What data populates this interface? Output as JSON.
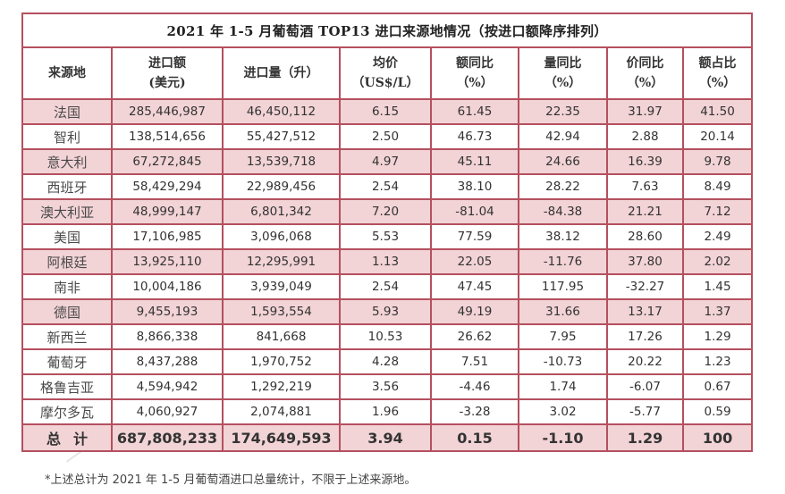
{
  "table": {
    "title": "2021 年 1-5 月葡萄酒 TOP13 进口来源地情况（按进口额降序排列）",
    "headers": [
      {
        "line1": "来源地",
        "line2": ""
      },
      {
        "line1": "进口额",
        "line2": "(美元)"
      },
      {
        "line1": "进口量（升）",
        "line2": ""
      },
      {
        "line1": "均价",
        "line2": "（US$/L）"
      },
      {
        "line1": "额同比",
        "line2": "（%）"
      },
      {
        "line1": "量同比",
        "line2": "（%）"
      },
      {
        "line1": "价同比",
        "line2": "（%）"
      },
      {
        "line1": "额占比",
        "line2": "（%）"
      }
    ],
    "rows": [
      {
        "country": "法国",
        "value_usd": "285,446,987",
        "volume_l": "46,450,112",
        "avg_price": "6.15",
        "value_yoy": "61.45",
        "volume_yoy": "22.35",
        "price_yoy": "31.97",
        "share": "41.50"
      },
      {
        "country": "智利",
        "value_usd": "138,514,656",
        "volume_l": "55,427,512",
        "avg_price": "2.50",
        "value_yoy": "46.73",
        "volume_yoy": "42.94",
        "price_yoy": "2.88",
        "share": "20.14"
      },
      {
        "country": "意大利",
        "value_usd": "67,272,845",
        "volume_l": "13,539,718",
        "avg_price": "4.97",
        "value_yoy": "45.11",
        "volume_yoy": "24.66",
        "price_yoy": "16.39",
        "share": "9.78"
      },
      {
        "country": "西班牙",
        "value_usd": "58,429,294",
        "volume_l": "22,989,456",
        "avg_price": "2.54",
        "value_yoy": "38.10",
        "volume_yoy": "28.22",
        "price_yoy": "7.63",
        "share": "8.49"
      },
      {
        "country": "澳大利亚",
        "value_usd": "48,999,147",
        "volume_l": "6,801,342",
        "avg_price": "7.20",
        "value_yoy": "-81.04",
        "volume_yoy": "-84.38",
        "price_yoy": "21.21",
        "share": "7.12"
      },
      {
        "country": "美国",
        "value_usd": "17,106,985",
        "volume_l": "3,096,068",
        "avg_price": "5.53",
        "value_yoy": "77.59",
        "volume_yoy": "38.12",
        "price_yoy": "28.60",
        "share": "2.49"
      },
      {
        "country": "阿根廷",
        "value_usd": "13,925,110",
        "volume_l": "12,295,991",
        "avg_price": "1.13",
        "value_yoy": "22.05",
        "volume_yoy": "-11.76",
        "price_yoy": "37.80",
        "share": "2.02"
      },
      {
        "country": "南非",
        "value_usd": "10,004,186",
        "volume_l": "3,939,049",
        "avg_price": "2.54",
        "value_yoy": "47.45",
        "volume_yoy": "117.95",
        "price_yoy": "-32.27",
        "share": "1.45"
      },
      {
        "country": "德国",
        "value_usd": "9,455,193",
        "volume_l": "1,593,554",
        "avg_price": "5.93",
        "value_yoy": "49.19",
        "volume_yoy": "31.66",
        "price_yoy": "13.17",
        "share": "1.37"
      },
      {
        "country": "新西兰",
        "value_usd": "8,866,338",
        "volume_l": "841,668",
        "avg_price": "10.53",
        "value_yoy": "26.62",
        "volume_yoy": "7.95",
        "price_yoy": "17.26",
        "share": "1.29"
      },
      {
        "country": "葡萄牙",
        "value_usd": "8,437,288",
        "volume_l": "1,970,752",
        "avg_price": "4.28",
        "value_yoy": "7.51",
        "volume_yoy": "-10.73",
        "price_yoy": "20.22",
        "share": "1.23"
      },
      {
        "country": "格鲁吉亚",
        "value_usd": "4,594,942",
        "volume_l": "1,292,219",
        "avg_price": "3.56",
        "value_yoy": "-4.46",
        "volume_yoy": "1.74",
        "price_yoy": "-6.07",
        "share": "0.67"
      },
      {
        "country": "摩尔多瓦",
        "value_usd": "4,060,927",
        "volume_l": "2,074,881",
        "avg_price": "1.96",
        "value_yoy": "-3.28",
        "volume_yoy": "3.02",
        "price_yoy": "-5.77",
        "share": "0.59"
      }
    ],
    "total": {
      "label": "总计",
      "value_usd": "687,808,233",
      "volume_l": "174,649,593",
      "avg_price": "3.94",
      "value_yoy": "0.15",
      "volume_yoy": "-1.10",
      "price_yoy": "1.29",
      "share": "100"
    }
  },
  "footnote": "*上述总计为 2021 年 1-5 月葡萄酒进口总量统计，不限于上述来源地。",
  "colors": {
    "border": "#b4505f",
    "row_highlight": "#f2d3d6",
    "row_plain": "#ffffff"
  }
}
